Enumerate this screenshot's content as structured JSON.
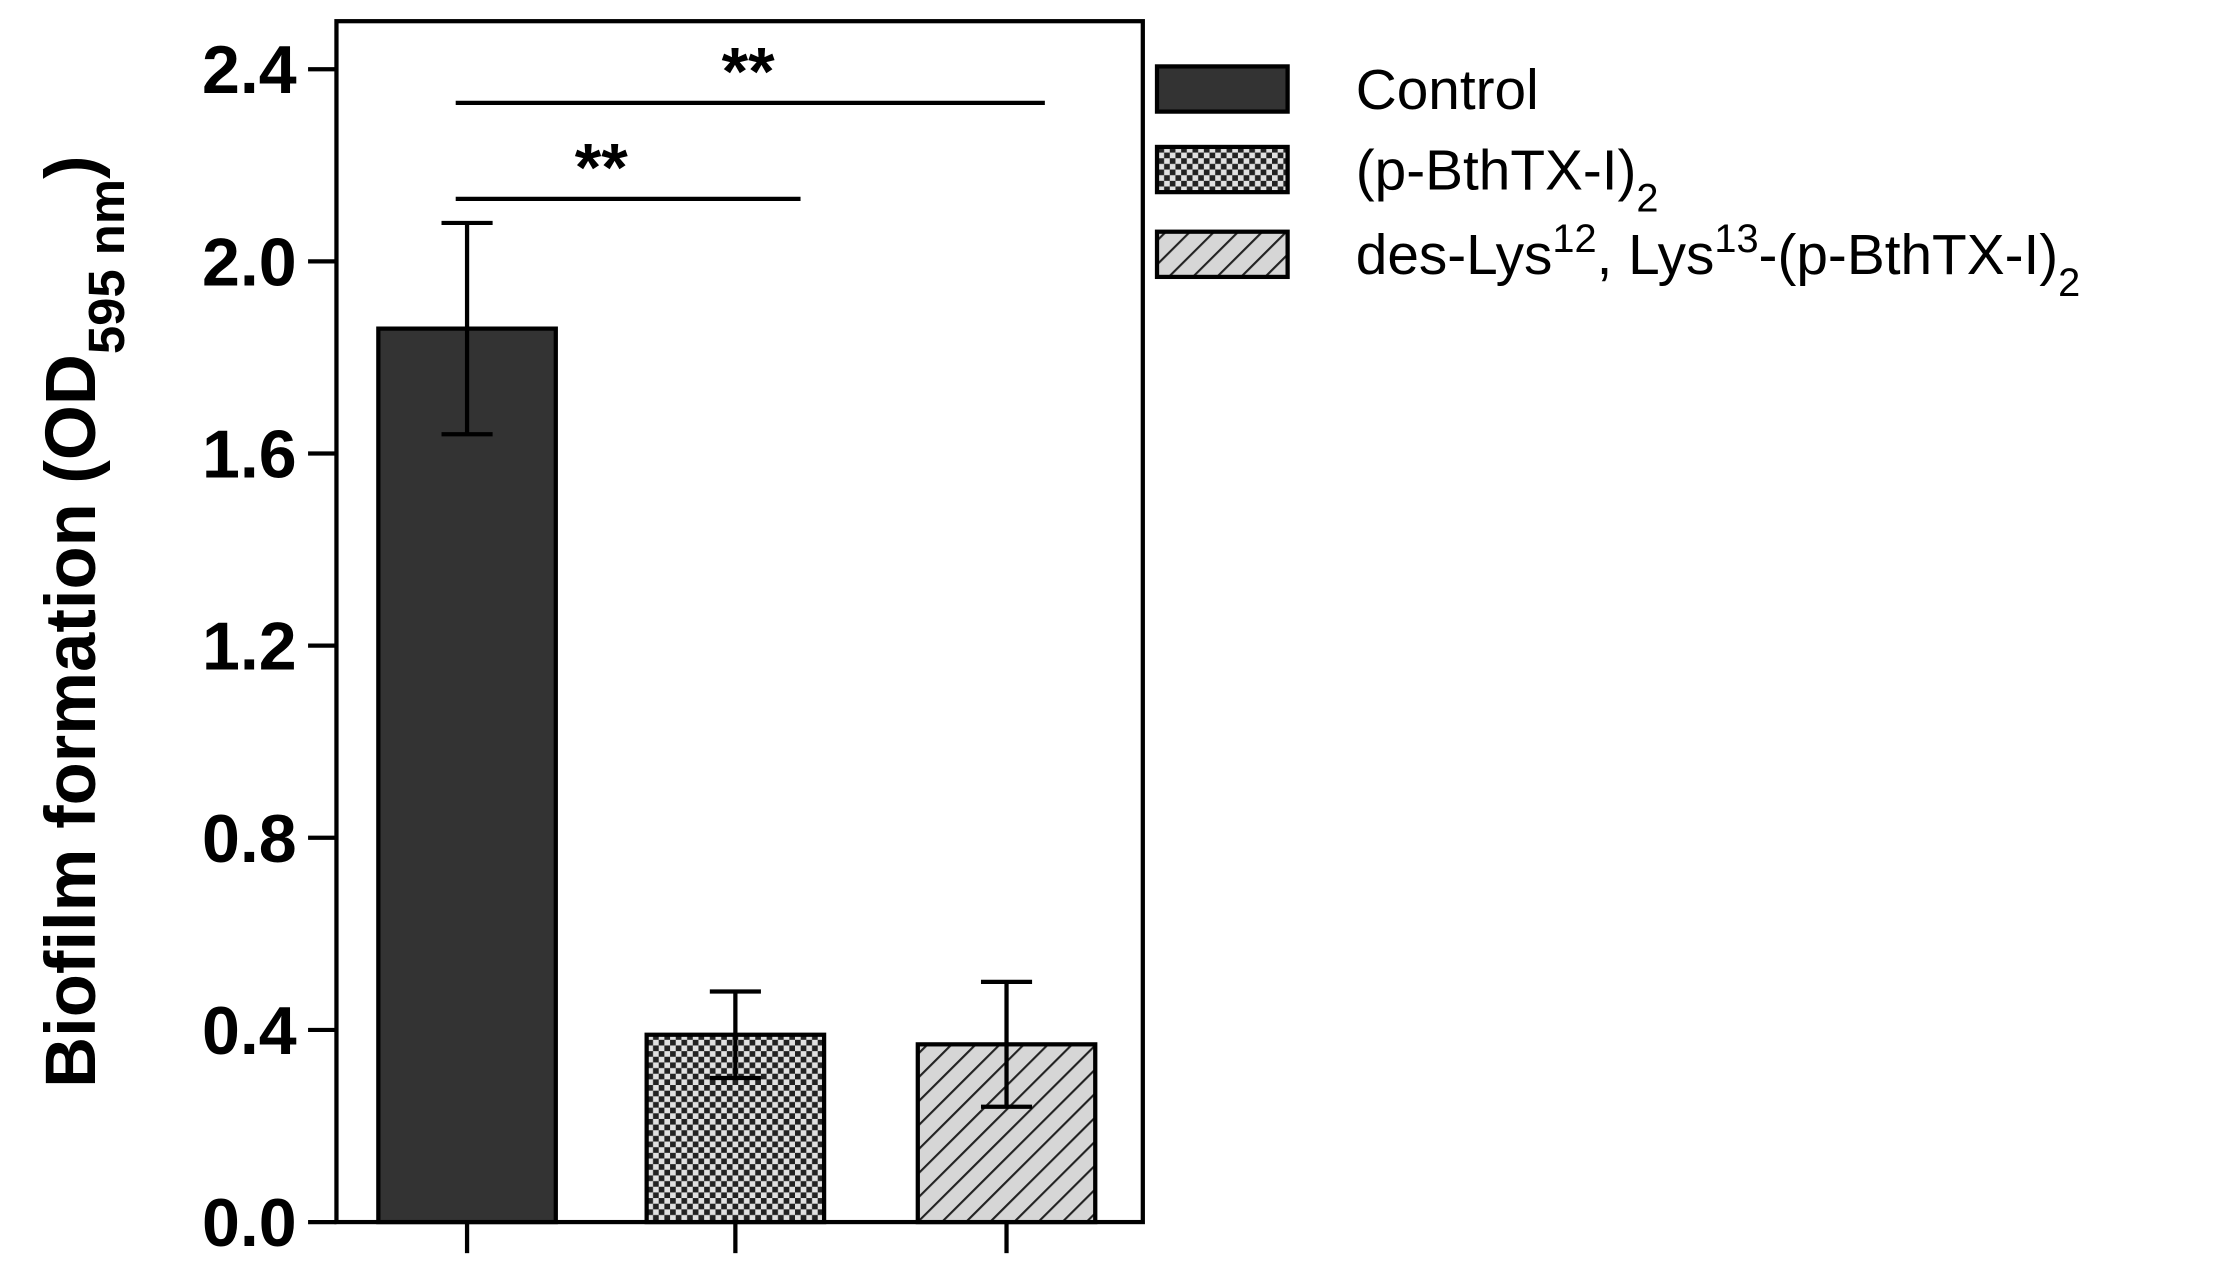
{
  "chart_data": {
    "type": "bar",
    "y_label": [
      {
        "text": "Biofilm formation (OD"
      },
      {
        "text": "595 nm",
        "shift": "sub"
      },
      {
        "text": ")"
      }
    ],
    "ylim": [
      0,
      2.5
    ],
    "yticks": [
      {
        "value": 0,
        "label": "0.0"
      },
      {
        "value": 0.4,
        "label": "0.4"
      },
      {
        "value": 0.8,
        "label": "0.8"
      },
      {
        "value": 1.2,
        "label": "1.2"
      },
      {
        "value": 1.6,
        "label": "1.6"
      },
      {
        "value": 2.0,
        "label": "2.0"
      },
      {
        "value": 2.4,
        "label": "2.4"
      }
    ],
    "series": [
      {
        "name": [
          {
            "text": "Control"
          }
        ],
        "color": "#333333",
        "pattern": "solid",
        "values": [
          1.86
        ],
        "errors": [
          0.22
        ]
      },
      {
        "name": [
          {
            "text": "(p-BthTX-I)"
          },
          {
            "text": "2",
            "shift": "sub"
          }
        ],
        "color": "#333333",
        "pattern": "checker",
        "values": [
          0.39
        ],
        "errors": [
          0.09
        ]
      },
      {
        "name": [
          {
            "text": "des-Lys"
          },
          {
            "text": "12",
            "shift": "super"
          },
          {
            "text": ", Lys"
          },
          {
            "text": "13",
            "shift": "super"
          },
          {
            "text": "-(p-BthTX-I)"
          },
          {
            "text": "2",
            "shift": "sub"
          }
        ],
        "color": "#333333",
        "pattern": "hatch",
        "values": [
          0.37
        ],
        "errors": [
          0.13
        ]
      }
    ],
    "annotations": [
      {
        "text": "**",
        "from": 0,
        "to": 2,
        "y": 2.33
      },
      {
        "text": "**",
        "from": 0,
        "to": 1,
        "y": 2.13
      }
    ]
  }
}
